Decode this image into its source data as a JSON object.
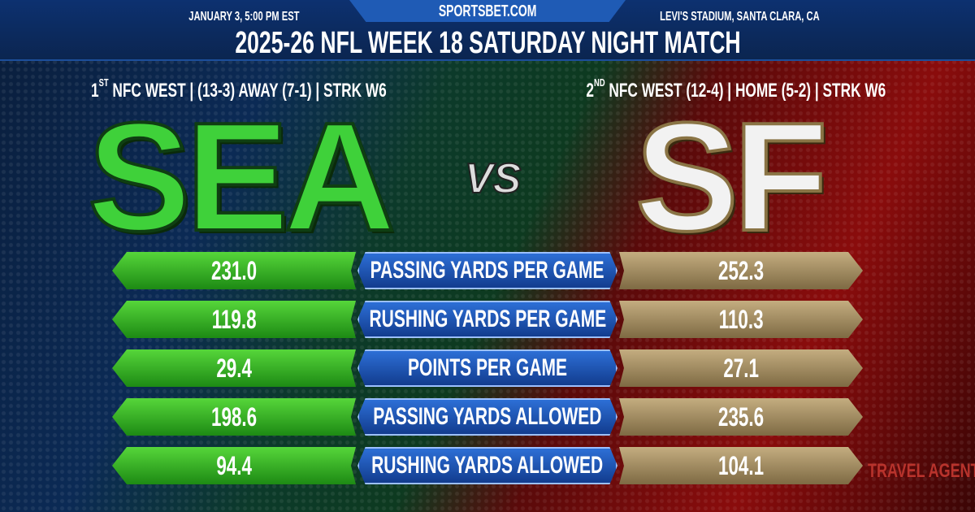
{
  "header": {
    "site": "SPORTSBET.COM",
    "date": "JANUARY 3, 5:00 PM EST",
    "venue": "LEVI'S STADIUM, SANTA CLARA, CA",
    "title": "2025-26 NFL WEEK 18 SATURDAY NIGHT MATCH"
  },
  "away": {
    "abbr": "SEA",
    "rank": "1",
    "rank_suffix": "ST",
    "record": "NFC WEST | (13-3) AWAY (7-1) | STRK W6",
    "color": "#3fd13a"
  },
  "home": {
    "abbr": "SF",
    "rank": "2",
    "rank_suffix": "ND",
    "record": "NFC WEST (12-4) | HOME (5-2) | STRK W6",
    "color": "#b49a6a"
  },
  "vs": "VS",
  "stats": [
    {
      "label": "PASSING YARDS PER GAME",
      "away": "231.0",
      "home": "252.3"
    },
    {
      "label": "RUSHING YARDS PER GAME",
      "away": "119.8",
      "home": "110.3"
    },
    {
      "label": "POINTS PER GAME",
      "away": "29.4",
      "home": "27.1"
    },
    {
      "label": "PASSING YARDS ALLOWED",
      "away": "198.6",
      "home": "235.6"
    },
    {
      "label": "RUSHING YARDS ALLOWED",
      "away": "94.4",
      "home": "104.1"
    }
  ],
  "watermark": "TRAVEL AGENT"
}
